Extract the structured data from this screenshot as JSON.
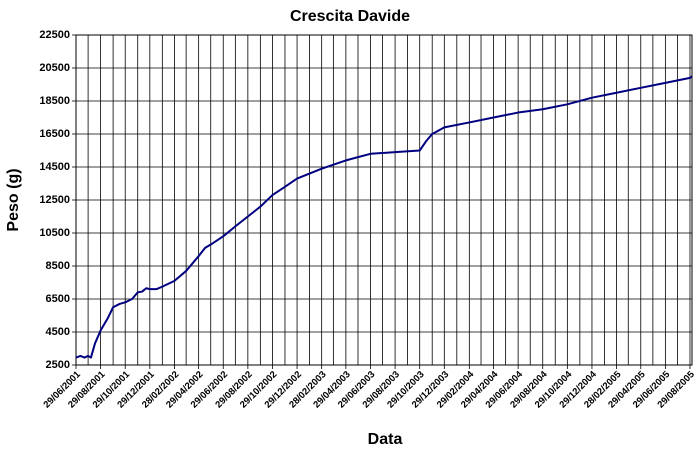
{
  "chart_data": {
    "type": "line",
    "title": "Crescita Davide",
    "x_label": "Data",
    "y_label": "Peso (g)",
    "color": "#000080",
    "grid": true,
    "x": [
      "2001-06-29",
      "2001-07-10",
      "2001-07-20",
      "2001-07-29",
      "2001-08-05",
      "2001-08-15",
      "2001-08-29",
      "2001-09-15",
      "2001-09-29",
      "2001-10-15",
      "2001-10-29",
      "2001-11-15",
      "2001-11-29",
      "2001-12-10",
      "2001-12-20",
      "2001-12-29",
      "2002-01-15",
      "2002-01-29",
      "2002-02-28",
      "2002-03-29",
      "2002-04-29",
      "2002-05-15",
      "2002-05-29",
      "2002-06-29",
      "2002-07-29",
      "2002-08-29",
      "2002-09-29",
      "2002-10-29",
      "2002-11-29",
      "2002-12-29",
      "2003-02-28",
      "2003-04-29",
      "2003-06-29",
      "2003-08-29",
      "2003-10-29",
      "2003-11-15",
      "2003-11-29",
      "2003-12-29",
      "2004-02-29",
      "2004-04-29",
      "2004-06-29",
      "2004-08-29",
      "2004-10-29",
      "2004-12-29",
      "2005-02-28",
      "2005-04-29",
      "2005-06-29",
      "2005-08-29",
      "2005-09-03"
    ],
    "values": [
      2950,
      3050,
      2950,
      3050,
      2950,
      3800,
      4600,
      5300,
      6000,
      6200,
      6300,
      6500,
      6900,
      6950,
      7150,
      7100,
      7100,
      7250,
      7600,
      8200,
      9100,
      9600,
      9800,
      10300,
      10900,
      11500,
      12100,
      12800,
      13300,
      13800,
      14400,
      14900,
      15300,
      15400,
      15500,
      16100,
      16500,
      16900,
      17200,
      17500,
      17800,
      18000,
      18300,
      18700,
      19000,
      19300,
      19600,
      19900,
      20000
    ],
    "xlim": [
      "2001-06-29",
      "2005-09-03"
    ],
    "xticks": [
      {
        "value": "2001-06-29",
        "label": "29/06/2001"
      },
      {
        "value": "2001-08-29",
        "label": "29/08/2001"
      },
      {
        "value": "2001-10-29",
        "label": "29/10/2001"
      },
      {
        "value": "2001-12-29",
        "label": "29/12/2001"
      },
      {
        "value": "2002-02-28",
        "label": "28/02/2002"
      },
      {
        "value": "2002-04-29",
        "label": "29/04/2002"
      },
      {
        "value": "2002-06-29",
        "label": "29/06/2002"
      },
      {
        "value": "2002-08-29",
        "label": "29/08/2002"
      },
      {
        "value": "2002-10-29",
        "label": "29/10/2002"
      },
      {
        "value": "2002-12-29",
        "label": "29/12/2002"
      },
      {
        "value": "2003-02-28",
        "label": "28/02/2003"
      },
      {
        "value": "2003-04-29",
        "label": "29/04/2003"
      },
      {
        "value": "2003-06-29",
        "label": "29/06/2003"
      },
      {
        "value": "2003-08-29",
        "label": "29/08/2003"
      },
      {
        "value": "2003-10-29",
        "label": "29/10/2003"
      },
      {
        "value": "2003-12-29",
        "label": "29/12/2003"
      },
      {
        "value": "2004-02-29",
        "label": "29/02/2004"
      },
      {
        "value": "2004-04-29",
        "label": "29/04/2004"
      },
      {
        "value": "2004-06-29",
        "label": "29/06/2004"
      },
      {
        "value": "2004-08-29",
        "label": "29/08/2004"
      },
      {
        "value": "2004-10-29",
        "label": "29/10/2004"
      },
      {
        "value": "2004-12-29",
        "label": "29/12/2004"
      },
      {
        "value": "2005-02-28",
        "label": "28/02/2005"
      },
      {
        "value": "2005-04-29",
        "label": "29/04/2005"
      },
      {
        "value": "2005-06-29",
        "label": "29/06/2005"
      },
      {
        "value": "2005-08-29",
        "label": "29/08/2005"
      }
    ],
    "xminor": [
      "2001-07-29",
      "2001-09-29",
      "2001-11-29",
      "2002-01-29",
      "2002-03-29",
      "2002-05-29",
      "2002-07-29",
      "2002-09-29",
      "2002-11-29",
      "2003-01-29",
      "2003-03-29",
      "2003-05-29",
      "2003-07-29",
      "2003-09-29",
      "2003-11-29",
      "2004-01-29",
      "2004-03-29",
      "2004-05-29",
      "2004-07-29",
      "2004-09-29",
      "2004-11-29",
      "2005-01-29",
      "2005-03-29",
      "2005-05-29",
      "2005-07-29"
    ],
    "ylim": [
      2500,
      22500
    ],
    "yticks": [
      2500,
      4500,
      6500,
      8500,
      10500,
      12500,
      14500,
      16500,
      18500,
      20500,
      22500
    ]
  }
}
